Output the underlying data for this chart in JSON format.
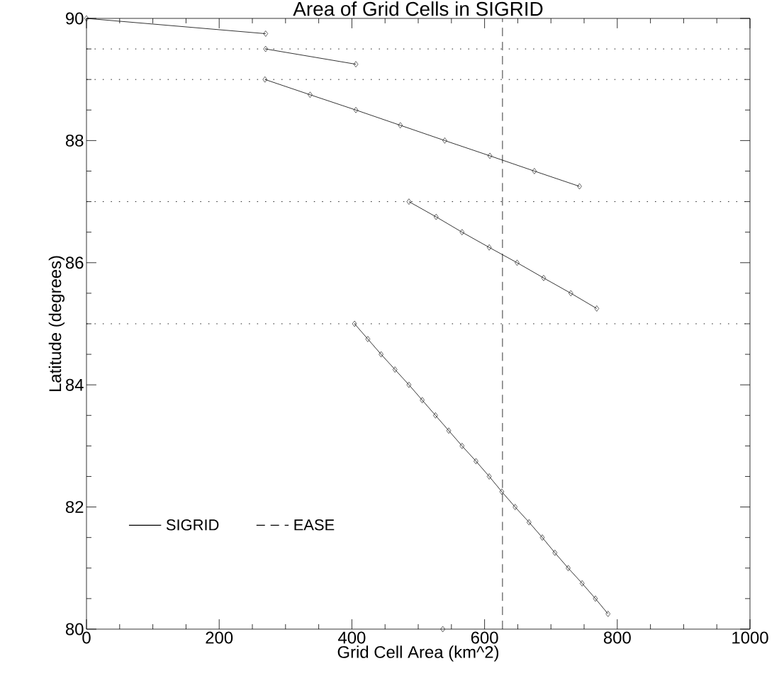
{
  "chart_data": {
    "type": "line",
    "title": "Area of Grid Cells in SIGRID",
    "xlabel": "Grid Cell Area (km^2)",
    "ylabel": "Latitude (degrees)",
    "xlim": [
      0,
      1000
    ],
    "xticks": [
      0,
      200,
      400,
      600,
      800,
      1000
    ],
    "ylim": [
      80,
      90
    ],
    "yticks": [
      80,
      82,
      84,
      86,
      88,
      90
    ],
    "grid": false,
    "legend": "bottom left",
    "marker": "diamond",
    "line_style": "solid",
    "series": [
      {
        "name": "SIGRID",
        "color": "#000000",
        "x": [
          0,
          270
        ],
        "values": [
          90,
          89.75
        ]
      },
      {
        "color": "#000000",
        "x": [
          270,
          406
        ],
        "values": [
          89.5,
          89.25
        ]
      },
      {
        "color": "#000000",
        "x": [
          269,
          337,
          406,
          473,
          540,
          608,
          675,
          743
        ],
        "values": [
          89,
          88.75,
          88.5,
          88.25,
          88,
          87.75,
          87.5,
          87.25
        ]
      },
      {
        "color": "#000000",
        "x": [
          486,
          527,
          566,
          607,
          649,
          689,
          730,
          769
        ],
        "values": [
          87,
          86.75,
          86.5,
          86.25,
          86,
          85.75,
          85.5,
          85.25
        ]
      },
      {
        "color": "#000000",
        "x": [
          404,
          424,
          444,
          465,
          486,
          506,
          526,
          546,
          566,
          587,
          607,
          626,
          646,
          667,
          687,
          706,
          726,
          747,
          767,
          786
        ],
        "values": [
          85,
          84.75,
          84.5,
          84.25,
          84,
          83.75,
          83.5,
          83.25,
          83,
          82.75,
          82.5,
          82.25,
          82,
          81.75,
          81.5,
          81.25,
          81,
          80.75,
          80.5,
          80.25
        ]
      },
      {
        "color": "#000000",
        "x": [
          537
        ],
        "values": [
          80
        ]
      },
      {
        "name": "EASE",
        "color": "#000000",
        "line_style": "dashed",
        "marker": "none",
        "x": [
          627,
          627
        ],
        "values": [
          80,
          90
        ]
      }
    ],
    "ref_lines": [
      {
        "axis": "y",
        "value": 89.5,
        "line_style": "dotted",
        "color": "#000000"
      },
      {
        "axis": "y",
        "value": 89,
        "line_style": "dotted",
        "color": "#000000"
      },
      {
        "axis": "y",
        "value": 87,
        "line_style": "dotted",
        "color": "#000000"
      },
      {
        "axis": "y",
        "value": 85,
        "line_style": "dotted",
        "color": "#000000"
      }
    ]
  }
}
